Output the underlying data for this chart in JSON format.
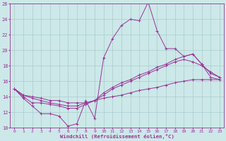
{
  "xlabel": "Windchill (Refroidissement éolien,°C)",
  "xlim": [
    -0.5,
    23.5
  ],
  "ylim": [
    10,
    26
  ],
  "yticks": [
    10,
    12,
    14,
    16,
    18,
    20,
    22,
    24,
    26
  ],
  "xticks": [
    0,
    1,
    2,
    3,
    4,
    5,
    6,
    7,
    8,
    9,
    10,
    11,
    12,
    13,
    14,
    15,
    16,
    17,
    18,
    19,
    20,
    21,
    22,
    23
  ],
  "background_color": "#cce8e8",
  "grid_color": "#aacccc",
  "line_color": "#993399",
  "lines": [
    {
      "x": [
        0,
        1,
        2,
        3,
        4,
        5,
        6,
        7,
        8,
        9,
        10,
        11,
        12,
        13,
        14,
        15,
        16,
        17,
        18,
        19,
        20,
        21,
        22,
        23
      ],
      "y": [
        15.0,
        13.8,
        12.8,
        11.8,
        11.8,
        11.5,
        10.2,
        10.5,
        13.5,
        11.2,
        19.0,
        21.5,
        23.2,
        24.0,
        23.8,
        26.2,
        22.5,
        20.2,
        20.2,
        19.2,
        19.5,
        18.2,
        16.5,
        16.2
      ]
    },
    {
      "x": [
        0,
        1,
        2,
        3,
        4,
        5,
        6,
        7,
        8,
        9,
        10,
        11,
        12,
        13,
        14,
        15,
        16,
        17,
        18,
        19,
        20,
        21,
        22,
        23
      ],
      "y": [
        15.0,
        14.0,
        13.2,
        13.2,
        13.0,
        12.8,
        12.5,
        12.5,
        13.0,
        13.5,
        14.5,
        15.2,
        15.8,
        16.2,
        16.8,
        17.2,
        17.8,
        18.2,
        18.8,
        19.2,
        19.5,
        18.2,
        17.0,
        16.5
      ]
    },
    {
      "x": [
        0,
        1,
        2,
        3,
        4,
        5,
        6,
        7,
        8,
        9,
        10,
        11,
        12,
        13,
        14,
        15,
        16,
        17,
        18,
        19,
        20,
        21,
        22,
        23
      ],
      "y": [
        15.0,
        14.2,
        13.8,
        13.5,
        13.2,
        13.0,
        12.8,
        12.8,
        13.2,
        13.5,
        14.2,
        15.0,
        15.5,
        16.0,
        16.5,
        17.0,
        17.5,
        18.0,
        18.5,
        18.8,
        18.5,
        18.0,
        17.2,
        16.5
      ]
    },
    {
      "x": [
        0,
        1,
        2,
        3,
        4,
        5,
        6,
        7,
        8,
        9,
        10,
        11,
        12,
        13,
        14,
        15,
        16,
        17,
        18,
        19,
        20,
        21,
        22,
        23
      ],
      "y": [
        15.0,
        14.2,
        14.0,
        13.8,
        13.5,
        13.5,
        13.2,
        13.2,
        13.2,
        13.5,
        13.8,
        14.0,
        14.2,
        14.5,
        14.8,
        15.0,
        15.2,
        15.5,
        15.8,
        16.0,
        16.2,
        16.2,
        16.2,
        16.2
      ]
    }
  ]
}
